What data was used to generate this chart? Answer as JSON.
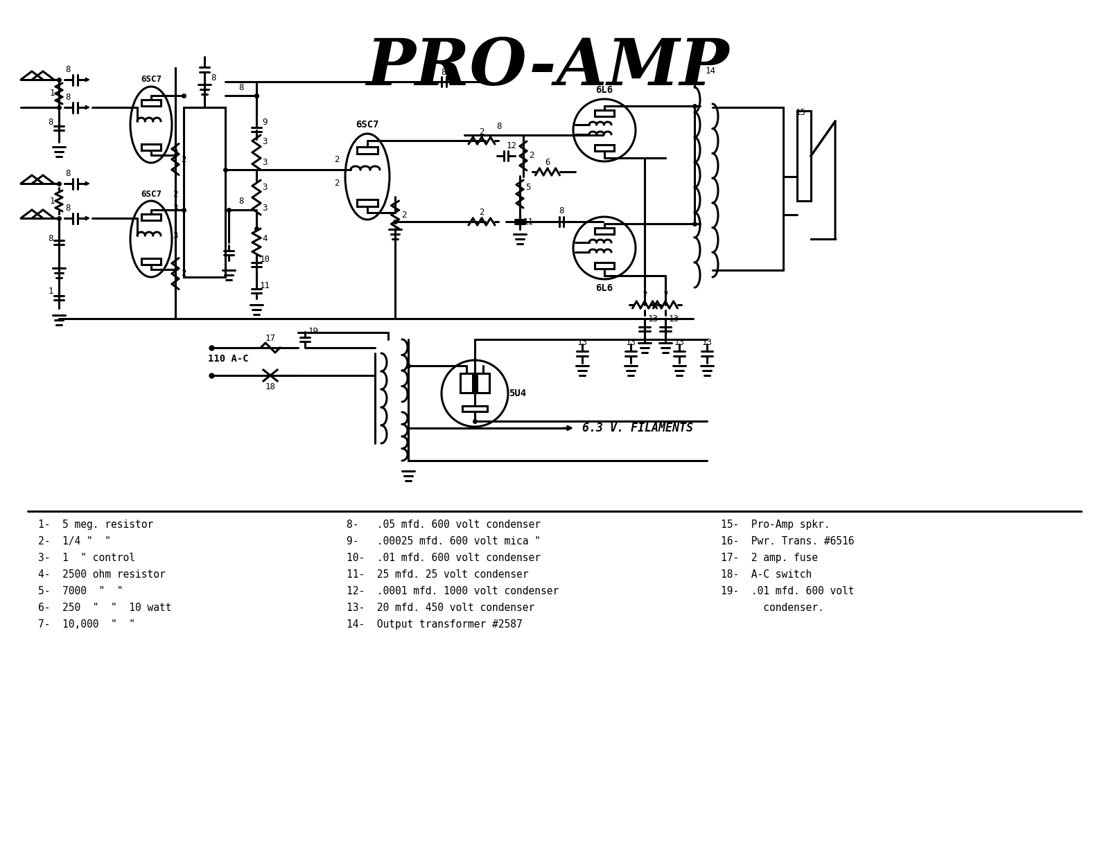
{
  "title": "PRO-AMP",
  "bg_color": "#ffffff",
  "line_color": "#000000",
  "title_fontsize": 68,
  "legend_col1": [
    "1-  5 meg. resistor",
    "2-  1/4 \"  \"",
    "3-  1  \" control",
    "4-  2500 ohm resistor",
    "5-  7000  \"  \"",
    "6-  250  \"  \"  10 watt",
    "7-  10,000  \"  \""
  ],
  "legend_col2": [
    "8-   .05 mfd. 600 volt condenser",
    "9-   .00025 mfd. 600 volt mica \"",
    "10-  .01 mfd. 600 volt condenser",
    "11-  25 mfd. 25 volt condenser",
    "12-  .0001 mfd. 1000 volt condenser",
    "13-  20 mfd. 450 volt condenser",
    "14-  Output transformer #2587"
  ],
  "legend_col3": [
    "15-  Pro-Amp spkr.",
    "16-  Pwr. Trans. #6516",
    "17-  2 amp. fuse",
    "18-  A-C switch",
    "19-  .01 mfd. 600 volt",
    "       condenser."
  ]
}
